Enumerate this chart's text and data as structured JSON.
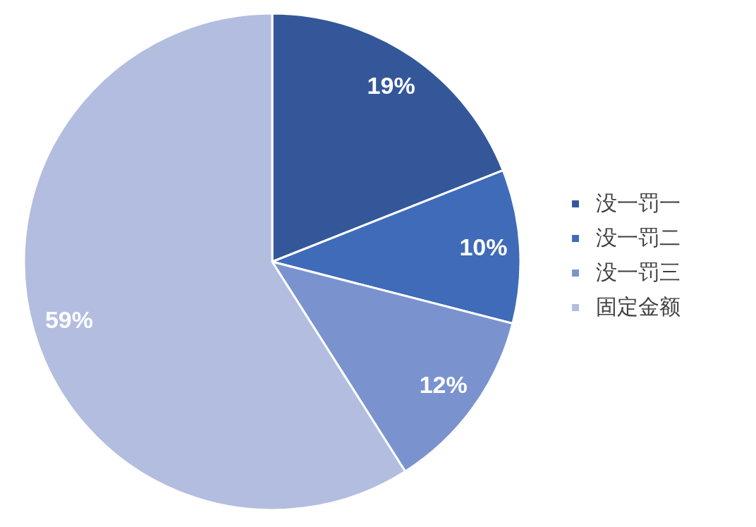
{
  "chart_data": {
    "type": "pie",
    "categories": [
      "没一罚一",
      "没一罚二",
      "没一罚三",
      "固定金额"
    ],
    "values": [
      19,
      10,
      12,
      59
    ],
    "colors": [
      "#34579a",
      "#3f6bb8",
      "#7a93cf",
      "#b3bde0"
    ],
    "value_labels": [
      "19%",
      "10%",
      "12%",
      "59%"
    ],
    "legend": "right"
  }
}
